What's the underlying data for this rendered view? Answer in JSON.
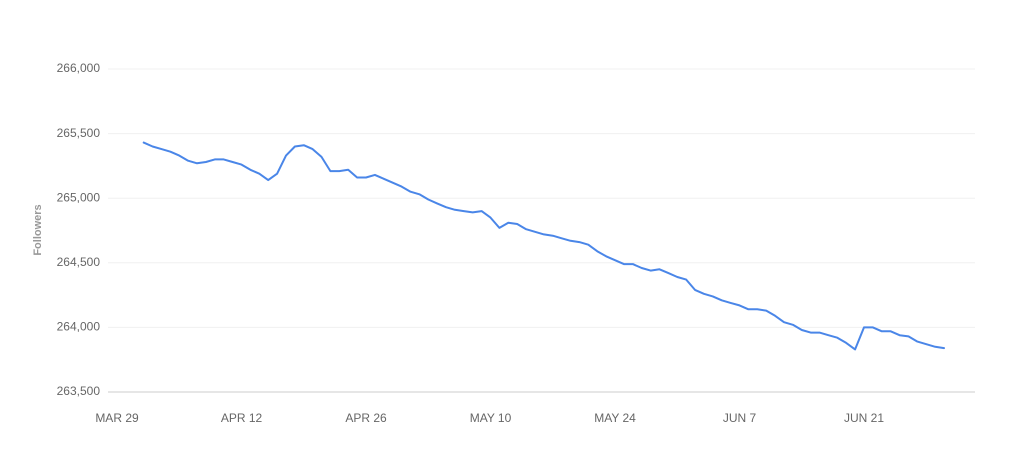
{
  "chart_data": {
    "type": "line",
    "y_label": "Followers",
    "categories": [
      "MAR 29",
      null,
      null,
      null,
      null,
      null,
      null,
      null,
      null,
      null,
      null,
      null,
      null,
      null,
      "APR 12",
      null,
      null,
      null,
      null,
      null,
      null,
      null,
      null,
      null,
      null,
      null,
      null,
      null,
      "APR 26",
      null,
      null,
      null,
      null,
      null,
      null,
      null,
      null,
      null,
      null,
      null,
      null,
      null,
      "MAY 10",
      null,
      null,
      null,
      null,
      null,
      null,
      null,
      null,
      null,
      null,
      null,
      null,
      null,
      "MAY 24",
      null,
      null,
      null,
      null,
      null,
      null,
      null,
      null,
      null,
      null,
      null,
      null,
      null,
      "JUN 7",
      null,
      null,
      null,
      null,
      null,
      null,
      null,
      null,
      null,
      null,
      null,
      null,
      null,
      "JUN 21",
      null,
      null,
      null,
      null,
      null,
      null,
      null,
      null,
      null
    ],
    "series": [
      {
        "name": "Followers",
        "color": "#4a86e8",
        "values": [
          null,
          null,
          null,
          265430,
          265400,
          265380,
          265360,
          265330,
          265290,
          265270,
          265280,
          265300,
          265300,
          265280,
          265260,
          265220,
          265190,
          265140,
          265190,
          265330,
          265400,
          265410,
          265380,
          265320,
          265210,
          265210,
          265220,
          265160,
          265160,
          265180,
          265150,
          265120,
          265090,
          265050,
          265030,
          264990,
          264960,
          264930,
          264910,
          264900,
          264890,
          264900,
          264850,
          264770,
          264810,
          264800,
          264760,
          264740,
          264720,
          264710,
          264690,
          264670,
          264660,
          264640,
          264590,
          264550,
          264520,
          264490,
          264490,
          264460,
          264440,
          264450,
          264420,
          264390,
          264370,
          264290,
          264260,
          264240,
          264210,
          264190,
          264170,
          264140,
          264140,
          264130,
          264090,
          264040,
          264020,
          263980,
          263960,
          263960,
          263940,
          263920,
          263880,
          263830,
          264000,
          264000,
          263970,
          263970,
          263940,
          263930,
          263890,
          263870,
          263850,
          263840
        ]
      }
    ],
    "ylim": [
      263500,
      266000
    ],
    "yticks": [
      {
        "value": 263500,
        "label": "263,500"
      },
      {
        "value": 264000,
        "label": "264,000"
      },
      {
        "value": 264500,
        "label": "264,500"
      },
      {
        "value": 265000,
        "label": "265,000"
      },
      {
        "value": 265500,
        "label": "265,500"
      },
      {
        "value": 266000,
        "label": "266,000"
      }
    ],
    "grid": true
  }
}
